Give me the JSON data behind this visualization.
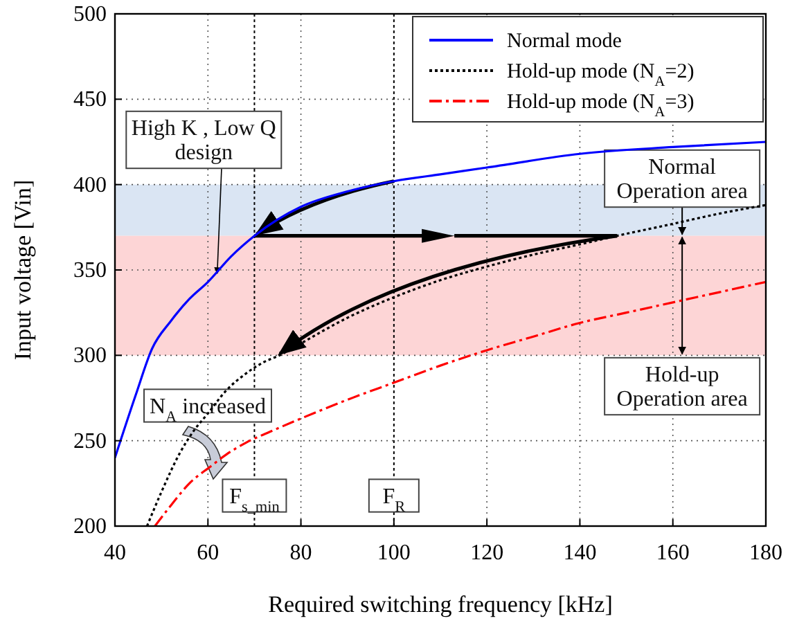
{
  "chart_data": {
    "type": "line",
    "xlabel": "Required switching frequency [kHz]",
    "ylabel": "Input voltage [Vin]",
    "xlim": [
      40,
      180
    ],
    "xticks": [
      40,
      60,
      80,
      100,
      120,
      140,
      160,
      180
    ],
    "ylim": [
      200,
      500
    ],
    "yticks": [
      200,
      250,
      300,
      350,
      400,
      450,
      500
    ],
    "grid": true,
    "legend": "top right",
    "series": [
      {
        "name": "Normal mode",
        "color": "#0000ff",
        "line_style": "solid",
        "x": [
          40,
          44.5,
          48,
          52,
          56,
          60,
          65,
          70,
          80,
          90,
          100,
          110,
          120,
          140,
          160,
          180
        ],
        "values": [
          240,
          277,
          304,
          320,
          333,
          343,
          358,
          370,
          387,
          396,
          402,
          406,
          410,
          418,
          422,
          425
        ]
      },
      {
        "name": "Hold-up mode (N$_{A}$=2)",
        "color": "#000000",
        "line_style": "dotted",
        "x": [
          46.9,
          50,
          54,
          57,
          60,
          63.8,
          68,
          72,
          75.4,
          80,
          90,
          100,
          110,
          120,
          130,
          140,
          148,
          160,
          170,
          180
        ],
        "values": [
          200,
          220,
          243,
          256,
          266,
          279,
          289,
          296,
          300,
          307,
          322,
          334,
          344,
          352,
          359,
          365,
          370,
          377,
          383,
          388
        ]
      },
      {
        "name": "Hold-up mode (N$_{A}$=3)",
        "color": "#ff0000",
        "line_style": "dashdot",
        "x": [
          48.6,
          52,
          56,
          60.6,
          64,
          68.3,
          74,
          80,
          90,
          100,
          110,
          120,
          130,
          140,
          150,
          160,
          170,
          180
        ],
        "values": [
          200,
          212,
          225,
          235,
          242,
          249,
          256,
          263,
          274,
          284,
          294,
          303,
          311,
          319,
          325,
          331,
          337,
          343
        ]
      }
    ],
    "bands": [
      {
        "axis": "y",
        "from": 370,
        "to": 400,
        "label": "Normal\nOperation area",
        "color": "#dae5f3"
      },
      {
        "axis": "y",
        "from": 300,
        "to": 370,
        "label": "Hold-up\nOperation area",
        "color": "#fdd5d6"
      }
    ],
    "ref_lines": [
      {
        "axis": "x",
        "value": 70,
        "label": "F$_{s_min}$"
      },
      {
        "axis": "x",
        "value": 100,
        "label": "F$_{R}$"
      }
    ],
    "annotations": [
      {
        "text": "High K , Low Q\ndesign",
        "x": 62,
        "y": 348
      },
      "N$_{A}$ increased"
    ]
  }
}
